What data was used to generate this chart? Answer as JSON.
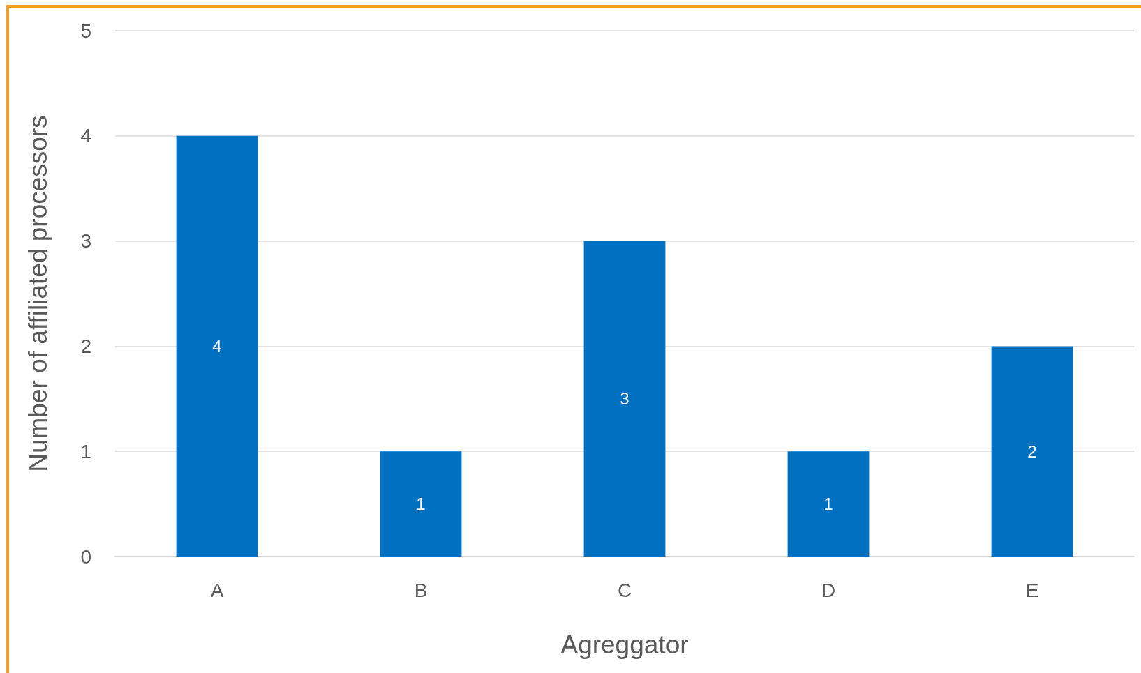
{
  "chart_data": {
    "type": "bar",
    "xlabel": "Agreggator",
    "ylabel": "Number of affiliated processors",
    "categories": [
      "A",
      "B",
      "C",
      "D",
      "E"
    ],
    "values": [
      4,
      1,
      3,
      1,
      2
    ],
    "color": "#0070c0",
    "ylim": [
      0,
      5
    ],
    "yticks": [
      0,
      1,
      2,
      3,
      4,
      5
    ],
    "grid": "y",
    "data_labels": true
  }
}
